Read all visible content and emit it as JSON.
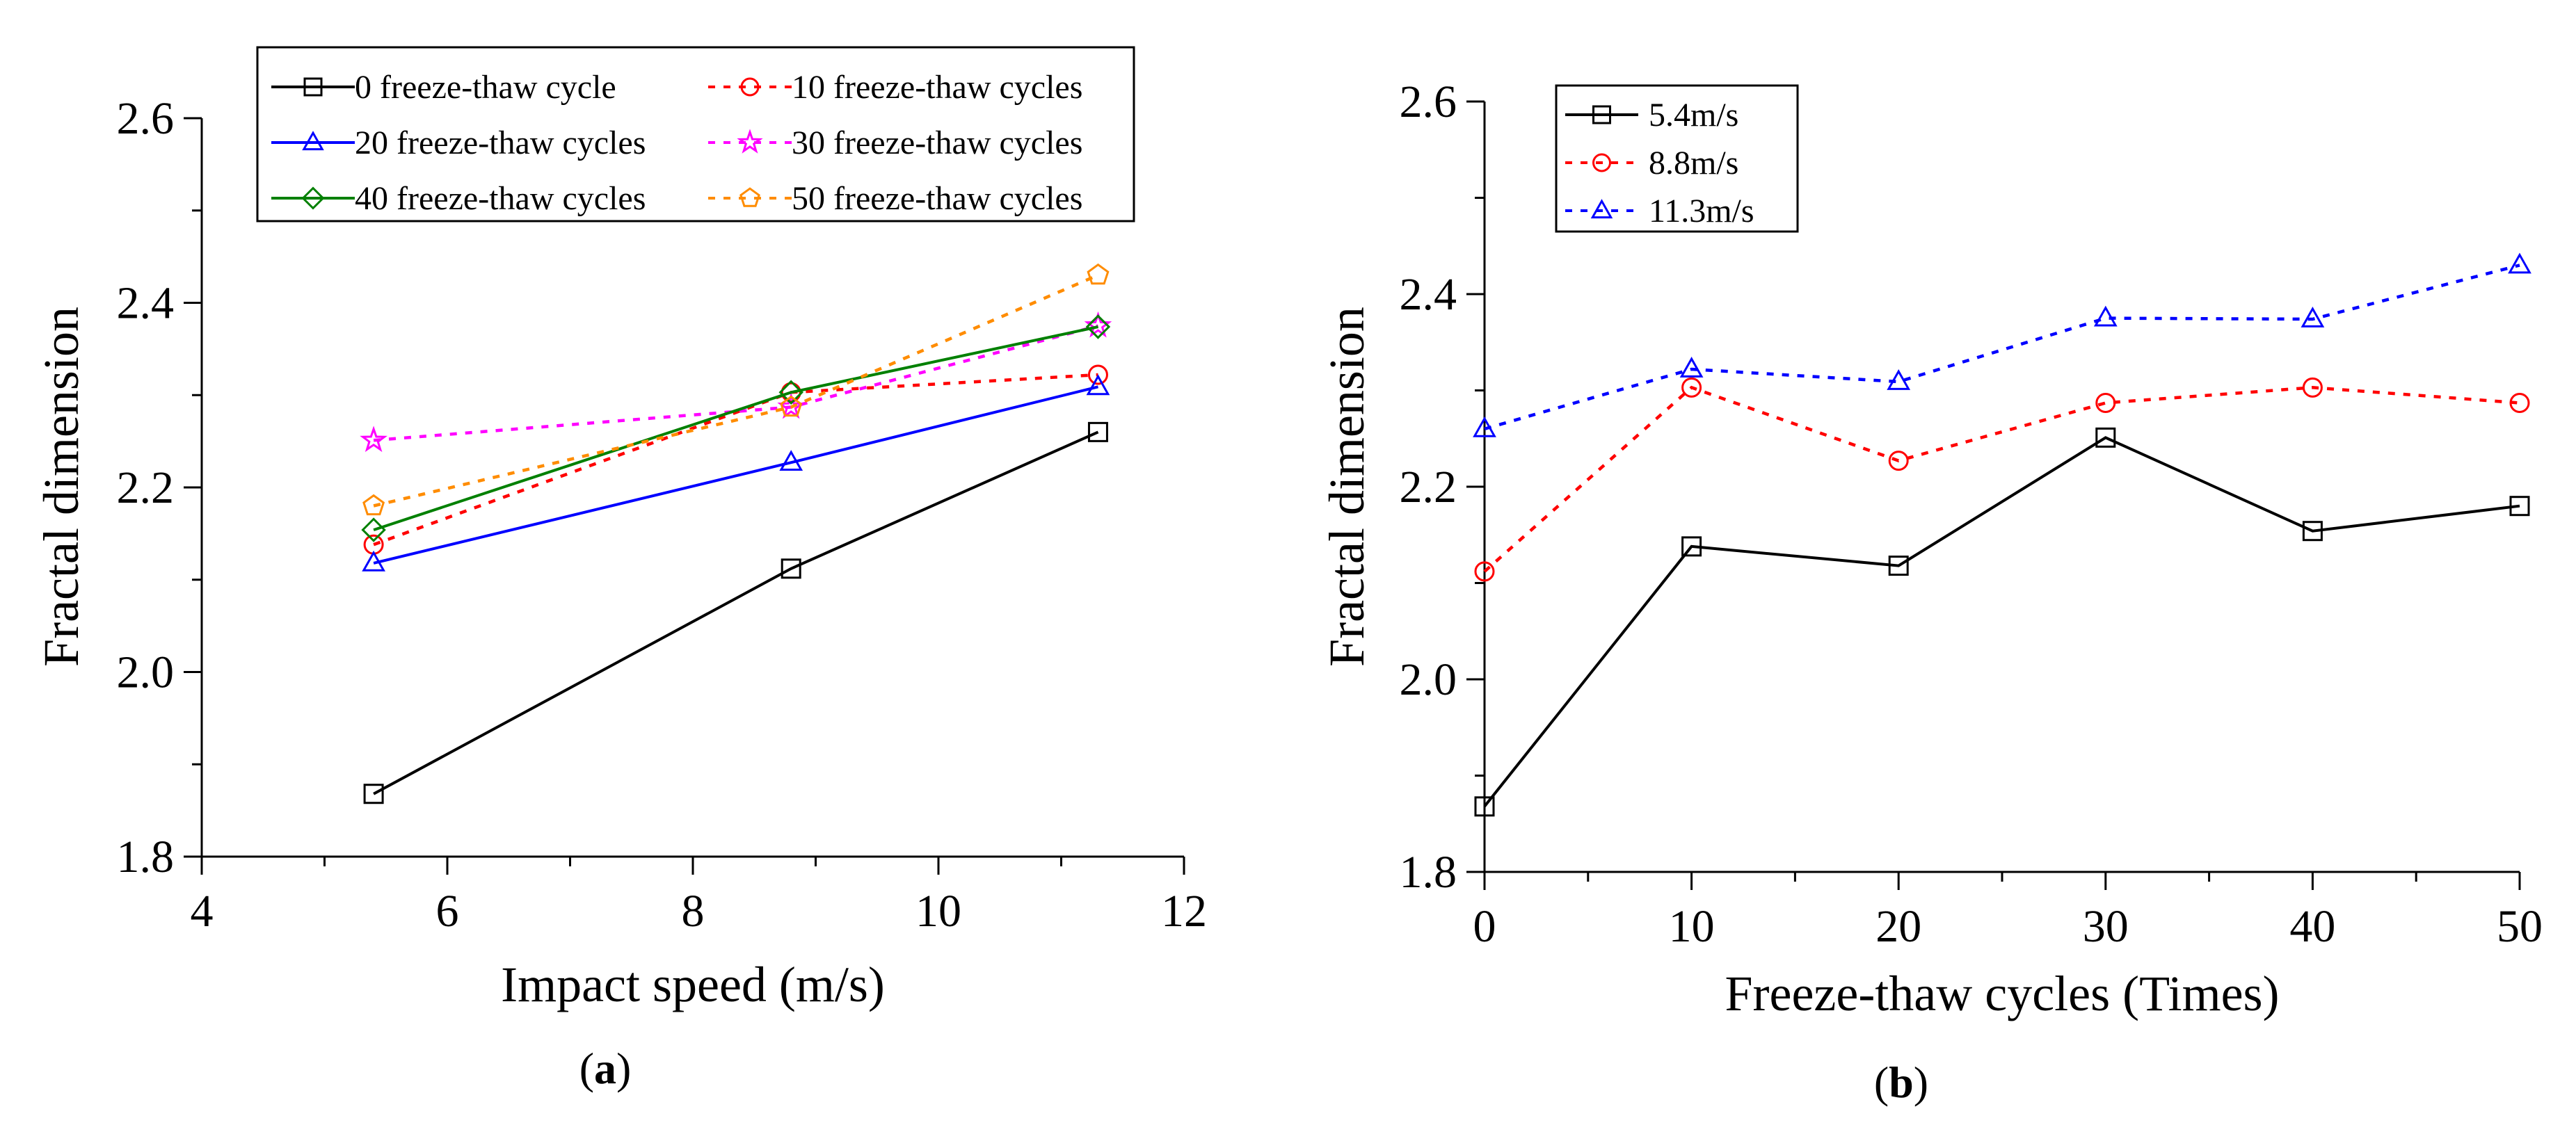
{
  "chart_data": [
    {
      "id": "a",
      "type": "line",
      "panel_label": "(a)",
      "panel_label_letter": "a",
      "xlabel": "Impact speed (m/s)",
      "ylabel": "Fractal dimension",
      "xlim": [
        4,
        12
      ],
      "ylim": [
        1.8,
        2.6
      ],
      "xticks": [
        4,
        6,
        8,
        10,
        12
      ],
      "yticks": [
        1.8,
        2.0,
        2.2,
        2.4,
        2.6
      ],
      "x": [
        5.4,
        8.8,
        11.3
      ],
      "legend_position": "top",
      "series": [
        {
          "name": "0 freeze-thaw cycle",
          "values": [
            1.868,
            2.112,
            2.26
          ],
          "color": "#000000",
          "dash": "solid",
          "marker": "square"
        },
        {
          "name": "10 freeze-thaw cycles",
          "values": [
            2.138,
            2.303,
            2.322
          ],
          "color": "#ff0000",
          "dash": "dot",
          "marker": "circle"
        },
        {
          "name": "20 freeze-thaw cycles",
          "values": [
            2.118,
            2.227,
            2.309
          ],
          "color": "#0000ff",
          "dash": "solid",
          "marker": "triangle"
        },
        {
          "name": "30 freeze-thaw cycles",
          "values": [
            2.251,
            2.287,
            2.375
          ],
          "color": "#ff00ff",
          "dash": "dot",
          "marker": "star"
        },
        {
          "name": "40 freeze-thaw cycles",
          "values": [
            2.154,
            2.303,
            2.374
          ],
          "color": "#008000",
          "dash": "solid",
          "marker": "diamond"
        },
        {
          "name": "50 freeze-thaw cycles",
          "values": [
            2.18,
            2.287,
            2.43
          ],
          "color": "#ff8c00",
          "dash": "dot",
          "marker": "pentagon"
        }
      ]
    },
    {
      "id": "b",
      "type": "line",
      "panel_label": "(b)",
      "panel_label_letter": "b",
      "xlabel": "Freeze-thaw cycles (Times)",
      "ylabel": "Fractal dimension",
      "xlim": [
        0,
        50
      ],
      "ylim": [
        1.8,
        2.6
      ],
      "xticks": [
        0,
        10,
        20,
        30,
        40,
        50
      ],
      "yticks": [
        1.8,
        2.0,
        2.2,
        2.4,
        2.6
      ],
      "x": [
        0,
        10,
        20,
        30,
        40,
        50
      ],
      "legend_position": "top-left",
      "series": [
        {
          "name": "5.4m/s",
          "values": [
            1.868,
            2.138,
            2.118,
            2.251,
            2.154,
            2.18
          ],
          "color": "#000000",
          "dash": "solid",
          "marker": "square"
        },
        {
          "name": "8.8m/s",
          "values": [
            2.112,
            2.303,
            2.227,
            2.287,
            2.303,
            2.287
          ],
          "color": "#ff0000",
          "dash": "dot",
          "marker": "circle"
        },
        {
          "name": "11.3m/s",
          "values": [
            2.26,
            2.322,
            2.309,
            2.375,
            2.374,
            2.43
          ],
          "color": "#0000ff",
          "dash": "dot",
          "marker": "triangle"
        }
      ]
    }
  ]
}
